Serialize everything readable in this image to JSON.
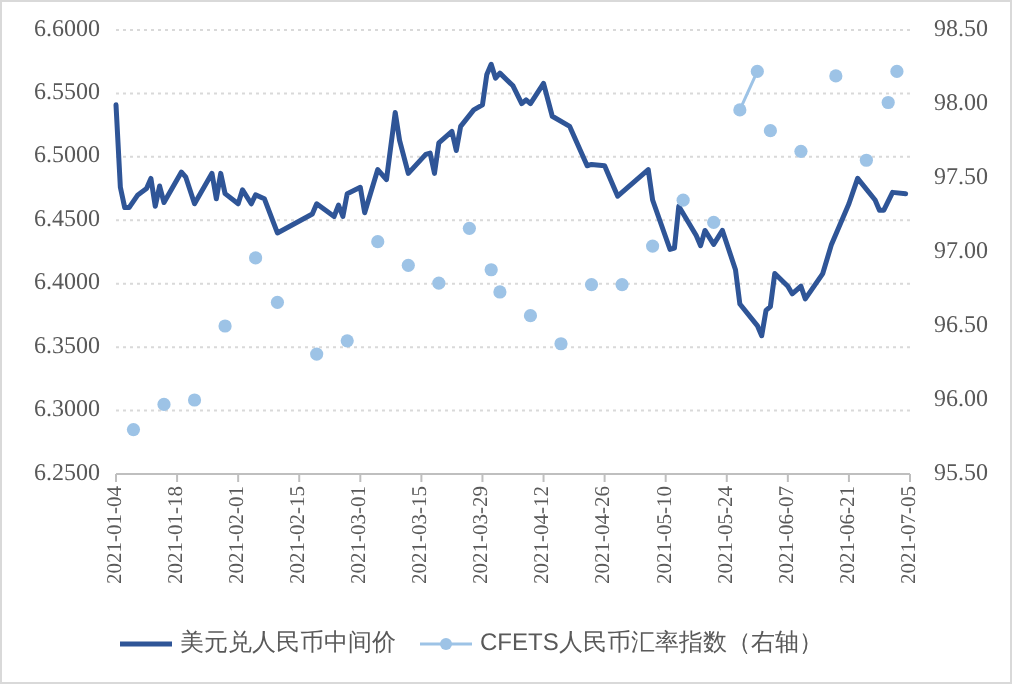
{
  "chart_data": {
    "type": "line",
    "xlim": [
      "2021-01-04",
      "2021-07-05"
    ],
    "xticks": [
      "2021-01-04",
      "2021-01-18",
      "2021-02-01",
      "2021-02-15",
      "2021-03-01",
      "2021-03-15",
      "2021-03-29",
      "2021-04-12",
      "2021-04-26",
      "2021-05-10",
      "2021-05-24",
      "2021-06-07",
      "2021-06-21",
      "2021-07-05"
    ],
    "ylim": [
      6.25,
      6.6
    ],
    "yticks": [
      {
        "value": 6.25,
        "label": "6.2500"
      },
      {
        "value": 6.3,
        "label": "6.3000"
      },
      {
        "value": 6.35,
        "label": "6.3500"
      },
      {
        "value": 6.4,
        "label": "6.4000"
      },
      {
        "value": 6.45,
        "label": "6.4500"
      },
      {
        "value": 6.5,
        "label": "6.5000"
      },
      {
        "value": 6.55,
        "label": "6.5500"
      },
      {
        "value": 6.6,
        "label": "6.6000"
      }
    ],
    "y2lim": [
      95.5,
      98.5
    ],
    "y2ticks": [
      {
        "value": 95.5,
        "label": "95.50"
      },
      {
        "value": 96,
        "label": "96.00"
      },
      {
        "value": 96.5,
        "label": "96.50"
      },
      {
        "value": 97,
        "label": "97.00"
      },
      {
        "value": 97.5,
        "label": "97.50"
      },
      {
        "value": 98,
        "label": "98.00"
      },
      {
        "value": 98.5,
        "label": "98.50"
      }
    ],
    "grid": "y",
    "legend": "bottom",
    "series": [
      {
        "name": "美元兑人民币中间价",
        "color": "#2f5597",
        "marker": "none",
        "x": [
          "2021-01-04",
          "2021-01-05",
          "2021-01-06",
          "2021-01-07",
          "2021-01-09",
          "2021-01-11",
          "2021-01-12",
          "2021-01-13",
          "2021-01-14",
          "2021-01-15",
          "2021-01-19",
          "2021-01-20",
          "2021-01-22",
          "2021-01-26",
          "2021-01-27",
          "2021-01-28",
          "2021-01-29",
          "2021-02-01",
          "2021-02-02",
          "2021-02-04",
          "2021-02-05",
          "2021-02-07",
          "2021-02-10",
          "2021-02-18",
          "2021-02-19",
          "2021-02-23",
          "2021-02-24",
          "2021-02-25",
          "2021-02-26",
          "2021-03-01",
          "2021-03-02",
          "2021-03-05",
          "2021-03-07",
          "2021-03-09",
          "2021-03-10",
          "2021-03-12",
          "2021-03-16",
          "2021-03-17",
          "2021-03-18",
          "2021-03-19",
          "2021-03-22",
          "2021-03-23",
          "2021-03-24",
          "2021-03-27",
          "2021-03-29",
          "2021-03-30",
          "2021-03-31",
          "2021-04-01",
          "2021-04-02",
          "2021-04-05",
          "2021-04-07",
          "2021-04-08",
          "2021-04-09",
          "2021-04-12",
          "2021-04-14",
          "2021-04-18",
          "2021-04-22",
          "2021-04-23",
          "2021-04-26",
          "2021-04-29",
          "2021-05-06",
          "2021-05-07",
          "2021-05-11",
          "2021-05-12",
          "2021-05-13",
          "2021-05-17",
          "2021-05-18",
          "2021-05-19",
          "2021-05-21",
          "2021-05-23",
          "2021-05-26",
          "2021-05-27",
          "2021-05-31",
          "2021-06-01",
          "2021-06-02",
          "2021-06-03",
          "2021-06-04",
          "2021-06-07",
          "2021-06-08",
          "2021-06-10",
          "2021-06-11",
          "2021-06-15",
          "2021-06-17",
          "2021-06-21",
          "2021-06-23",
          "2021-06-27",
          "2021-06-28",
          "2021-06-29",
          "2021-07-01",
          "2021-07-04"
        ],
        "values": [
          6.541,
          6.476,
          6.46,
          6.46,
          6.47,
          6.475,
          6.483,
          6.461,
          6.477,
          6.464,
          6.488,
          6.484,
          6.463,
          6.487,
          6.467,
          6.487,
          6.471,
          6.463,
          6.474,
          6.463,
          6.47,
          6.467,
          6.44,
          6.455,
          6.463,
          6.453,
          6.462,
          6.453,
          6.471,
          6.476,
          6.456,
          6.49,
          6.482,
          6.535,
          6.513,
          6.487,
          6.502,
          6.503,
          6.487,
          6.511,
          6.52,
          6.505,
          6.524,
          6.537,
          6.541,
          6.565,
          6.573,
          6.562,
          6.566,
          6.556,
          6.542,
          6.545,
          6.542,
          6.558,
          6.532,
          6.524,
          6.493,
          6.494,
          6.493,
          6.469,
          6.49,
          6.466,
          6.427,
          6.428,
          6.461,
          6.438,
          6.43,
          6.442,
          6.431,
          6.442,
          6.411,
          6.384,
          6.367,
          6.359,
          6.379,
          6.382,
          6.408,
          6.398,
          6.392,
          6.398,
          6.388,
          6.408,
          6.431,
          6.463,
          6.483,
          6.466,
          6.458,
          6.458,
          6.472,
          6.471
        ]
      },
      {
        "name": "CFETS人民币汇率指数（右轴）",
        "axis": "y2",
        "color": "#9dc3e6",
        "marker": "circle",
        "x": [
          "2021-01-08",
          "2021-01-09",
          "2021-01-15",
          "2021-01-16",
          "2021-01-22",
          "2021-01-23",
          "2021-01-29",
          "2021-01-30",
          "2021-02-05",
          "2021-02-06",
          "2021-02-10",
          "2021-02-11",
          "2021-02-19",
          "2021-02-20",
          "2021-02-26",
          "2021-02-27",
          "2021-03-05",
          "2021-03-06",
          "2021-03-12",
          "2021-03-13",
          "2021-03-19",
          "2021-03-20",
          "2021-03-26",
          "2021-03-27",
          "2021-03-31",
          "2021-04-01",
          "2021-04-02",
          "2021-04-03",
          "2021-04-09",
          "2021-04-10",
          "2021-04-16",
          "2021-04-17",
          "2021-04-23",
          "2021-04-24",
          "2021-04-30",
          "2021-05-01",
          "2021-05-07",
          "2021-05-08",
          "2021-05-14",
          "2021-05-15",
          "2021-05-21",
          "2021-05-22",
          "2021-05-27",
          "2021-05-31",
          "2021-06-01",
          "2021-06-03",
          "2021-06-04",
          "2021-06-10",
          "2021-06-11",
          "2021-06-18",
          "2021-06-19",
          "2021-06-25",
          "2021-06-26",
          "2021-06-30",
          "2021-07-01",
          "2021-07-02"
        ],
        "values": [
          95.8,
          null,
          95.97,
          null,
          96.0,
          null,
          96.5,
          null,
          96.96,
          null,
          96.66,
          null,
          96.31,
          null,
          96.4,
          null,
          97.07,
          null,
          96.91,
          null,
          96.79,
          null,
          97.16,
          null,
          96.88,
          null,
          96.73,
          null,
          96.57,
          null,
          96.38,
          null,
          96.78,
          null,
          96.78,
          null,
          97.04,
          null,
          97.35,
          null,
          97.2,
          null,
          97.96,
          98.22,
          null,
          97.82,
          null,
          97.68,
          null,
          98.19,
          null,
          97.62,
          null,
          98.01,
          null,
          98.22
        ]
      }
    ]
  }
}
